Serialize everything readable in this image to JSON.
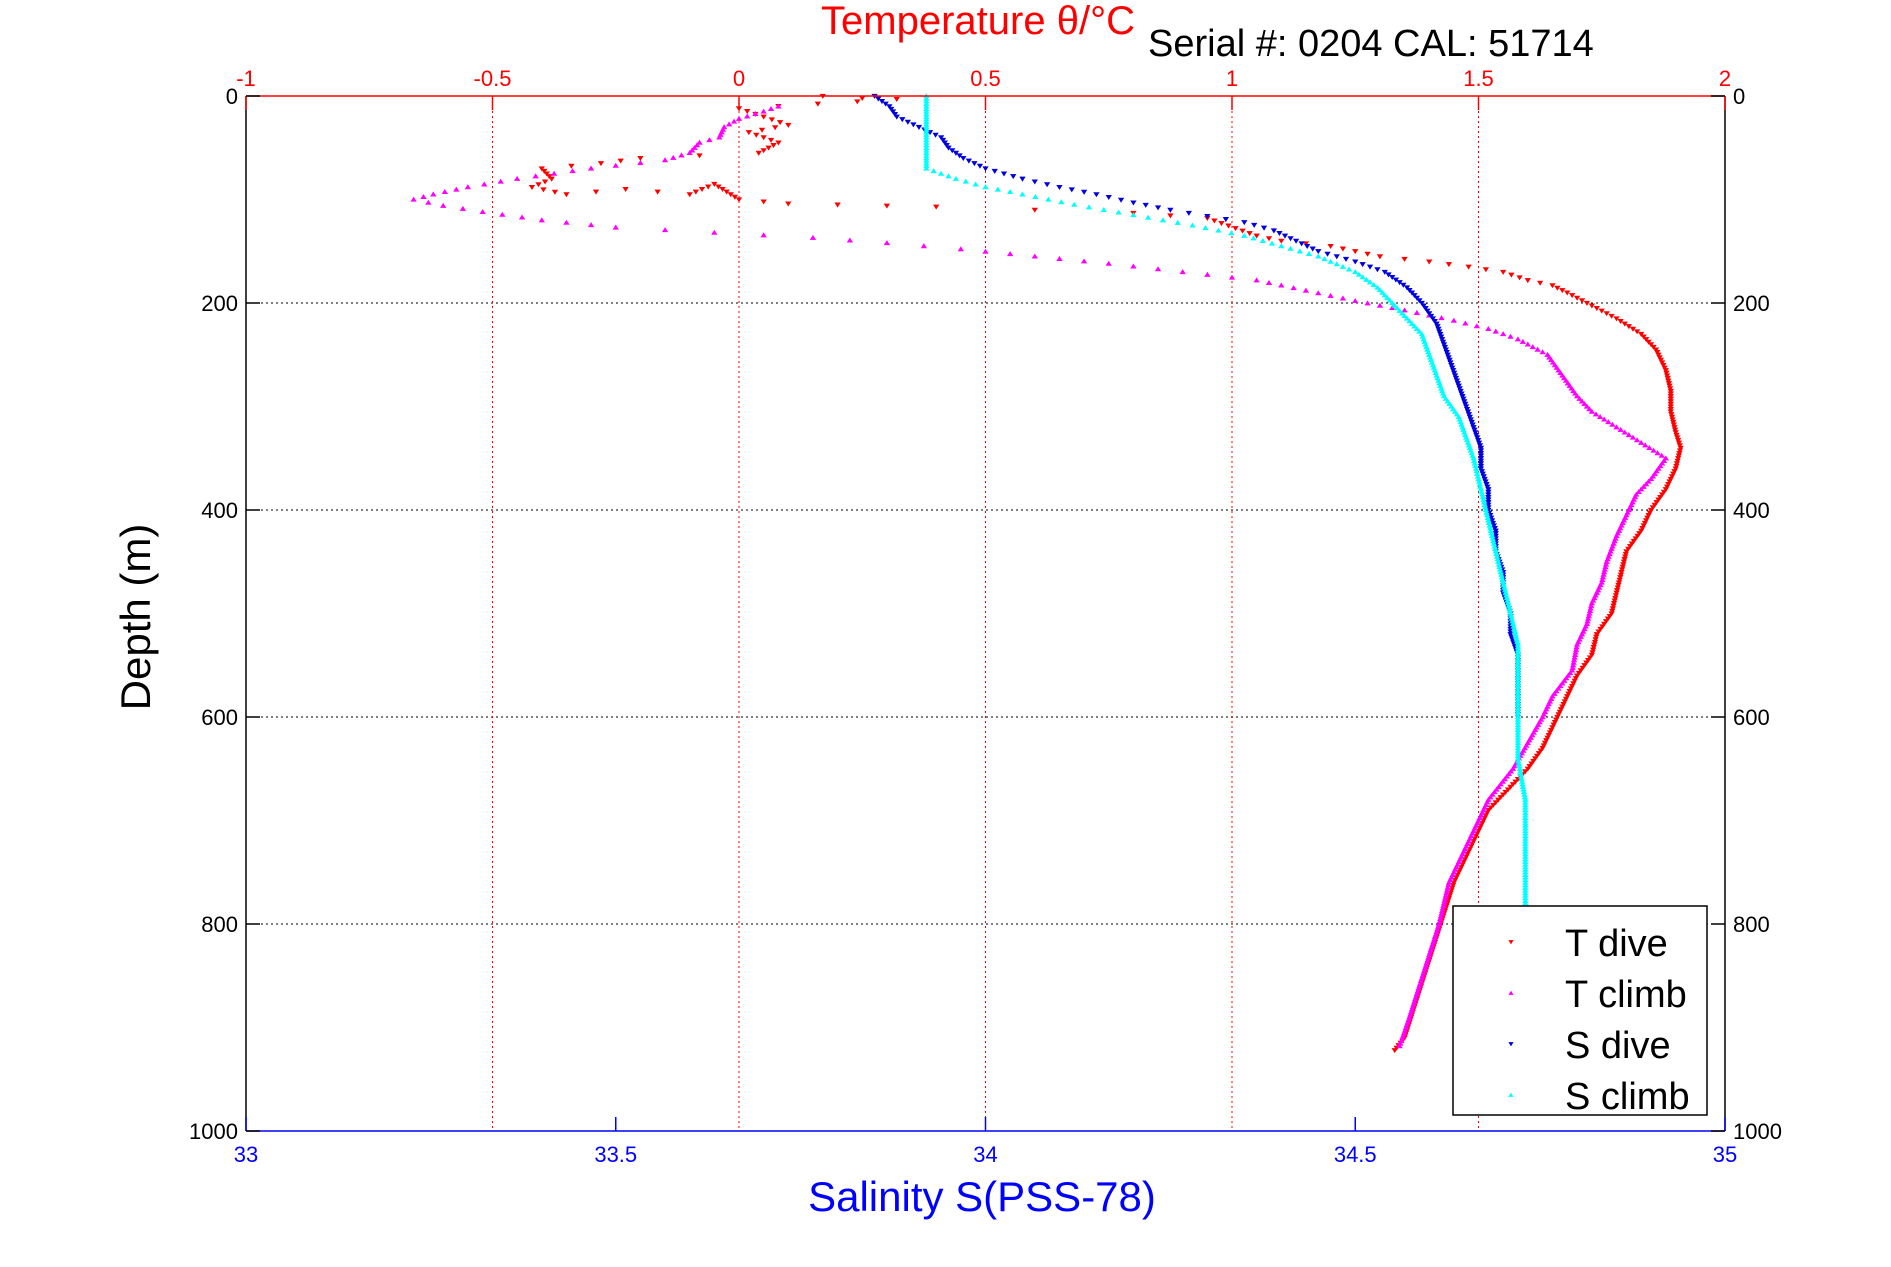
{
  "chart_data": {
    "type": "scatter",
    "title": "Temperature θ/°C",
    "subtitle": "Serial #: 0204  CAL: 51714",
    "xlabel": "Salinity S(PSS-78)",
    "ylabel": "Depth (m)",
    "x_bottom": {
      "label": "Salinity S(PSS-78)",
      "range": [
        33,
        35
      ],
      "ticks": [
        "33",
        "33.5",
        "34",
        "34.5",
        "35"
      ],
      "color": "#0000ff"
    },
    "x_top": {
      "label": "Temperature θ/°C",
      "range": [
        -1,
        2
      ],
      "ticks": [
        "-1",
        "-0.5",
        "0",
        "0.5",
        "1",
        "1.5",
        "2"
      ],
      "color": "#ff0000"
    },
    "y": {
      "label": "Depth (m)",
      "range": [
        0,
        1000
      ],
      "reversed": true,
      "ticks": [
        "0",
        "200",
        "400",
        "600",
        "800",
        "1000"
      ],
      "right_ticks": [
        "0",
        "200",
        "400",
        "600",
        "800",
        "1000"
      ]
    },
    "grid": true,
    "legend_position": "bottom-right",
    "series": [
      {
        "name": "T dive",
        "axis": "temperature",
        "color": "#ff0000",
        "marker": "triangle-down",
        "points": [
          [
            0.17,
            0
          ],
          [
            0.25,
            2
          ],
          [
            0.32,
            3
          ],
          [
            0.0,
            12
          ],
          [
            0.05,
            20
          ],
          [
            0.1,
            28
          ],
          [
            0.02,
            35
          ],
          [
            0.08,
            45
          ],
          [
            0.04,
            55
          ],
          [
            -0.2,
            60
          ],
          [
            -0.28,
            65
          ],
          [
            -0.4,
            70
          ],
          [
            -0.38,
            80
          ],
          [
            -0.42,
            88
          ],
          [
            -0.35,
            95
          ],
          [
            -0.23,
            90
          ],
          [
            -0.1,
            95
          ],
          [
            -0.05,
            85
          ],
          [
            0.0,
            100
          ],
          [
            0.05,
            102
          ],
          [
            0.1,
            104
          ],
          [
            0.2,
            105
          ],
          [
            0.3,
            106
          ],
          [
            0.4,
            107
          ],
          [
            0.6,
            110
          ],
          [
            0.8,
            113
          ],
          [
            0.95,
            118
          ],
          [
            1.05,
            135
          ],
          [
            1.1,
            140
          ],
          [
            1.2,
            145
          ],
          [
            1.3,
            155
          ],
          [
            1.4,
            160
          ],
          [
            1.48,
            165
          ],
          [
            1.55,
            170
          ],
          [
            1.6,
            178
          ],
          [
            1.65,
            183
          ],
          [
            1.68,
            190
          ],
          [
            1.72,
            200
          ],
          [
            1.78,
            215
          ],
          [
            1.83,
            230
          ],
          [
            1.86,
            245
          ],
          [
            1.88,
            265
          ],
          [
            1.89,
            285
          ],
          [
            1.89,
            305
          ],
          [
            1.9,
            325
          ],
          [
            1.91,
            340
          ],
          [
            1.9,
            360
          ],
          [
            1.88,
            380
          ],
          [
            1.85,
            400
          ],
          [
            1.83,
            420
          ],
          [
            1.8,
            440
          ],
          [
            1.79,
            460
          ],
          [
            1.78,
            480
          ],
          [
            1.77,
            500
          ],
          [
            1.74,
            520
          ],
          [
            1.73,
            540
          ],
          [
            1.7,
            560
          ],
          [
            1.68,
            580
          ],
          [
            1.66,
            600
          ],
          [
            1.63,
            630
          ],
          [
            1.6,
            650
          ],
          [
            1.56,
            670
          ],
          [
            1.52,
            690
          ],
          [
            1.5,
            710
          ],
          [
            1.48,
            730
          ],
          [
            1.45,
            760
          ],
          [
            1.43,
            790
          ],
          [
            1.41,
            820
          ],
          [
            1.39,
            850
          ],
          [
            1.37,
            880
          ],
          [
            1.35,
            910
          ],
          [
            1.33,
            922
          ]
        ]
      },
      {
        "name": "T climb",
        "axis": "temperature",
        "color": "#ff00ff",
        "marker": "triangle-up",
        "points": [
          [
            0.08,
            10
          ],
          [
            0.05,
            15
          ],
          [
            0.0,
            22
          ],
          [
            -0.03,
            30
          ],
          [
            -0.04,
            40
          ],
          [
            -0.08,
            45
          ],
          [
            -0.1,
            55
          ],
          [
            -0.15,
            62
          ],
          [
            -0.3,
            70
          ],
          [
            -0.45,
            80
          ],
          [
            -0.55,
            88
          ],
          [
            -0.62,
            95
          ],
          [
            -0.66,
            100
          ],
          [
            -0.6,
            106
          ],
          [
            -0.52,
            112
          ],
          [
            -0.4,
            120
          ],
          [
            -0.25,
            127
          ],
          [
            -0.05,
            132
          ],
          [
            0.15,
            137
          ],
          [
            0.3,
            142
          ],
          [
            0.45,
            148
          ],
          [
            0.6,
            155
          ],
          [
            0.75,
            162
          ],
          [
            0.9,
            170
          ],
          [
            1.05,
            178
          ],
          [
            1.15,
            188
          ],
          [
            1.25,
            198
          ],
          [
            1.35,
            207
          ],
          [
            1.45,
            217
          ],
          [
            1.52,
            225
          ],
          [
            1.58,
            235
          ],
          [
            1.64,
            250
          ],
          [
            1.67,
            270
          ],
          [
            1.7,
            290
          ],
          [
            1.73,
            305
          ],
          [
            1.78,
            320
          ],
          [
            1.83,
            335
          ],
          [
            1.88,
            350
          ],
          [
            1.85,
            370
          ],
          [
            1.82,
            385
          ],
          [
            1.8,
            405
          ],
          [
            1.78,
            425
          ],
          [
            1.76,
            450
          ],
          [
            1.75,
            470
          ],
          [
            1.73,
            490
          ],
          [
            1.72,
            510
          ],
          [
            1.7,
            530
          ],
          [
            1.69,
            555
          ],
          [
            1.65,
            580
          ],
          [
            1.63,
            600
          ],
          [
            1.6,
            625
          ],
          [
            1.57,
            650
          ],
          [
            1.52,
            680
          ],
          [
            1.48,
            720
          ],
          [
            1.44,
            760
          ],
          [
            1.42,
            800
          ],
          [
            1.4,
            830
          ],
          [
            1.38,
            860
          ],
          [
            1.36,
            890
          ],
          [
            1.34,
            918
          ]
        ]
      },
      {
        "name": "S dive",
        "axis": "salinity",
        "color": "#0000dd",
        "marker": "triangle-down",
        "points": [
          [
            33.85,
            0
          ],
          [
            33.87,
            10
          ],
          [
            33.88,
            20
          ],
          [
            33.91,
            30
          ],
          [
            33.94,
            40
          ],
          [
            33.95,
            50
          ],
          [
            33.97,
            60
          ],
          [
            34.0,
            70
          ],
          [
            34.05,
            80
          ],
          [
            34.1,
            88
          ],
          [
            34.15,
            95
          ],
          [
            34.2,
            103
          ],
          [
            34.25,
            110
          ],
          [
            34.3,
            116
          ],
          [
            34.35,
            122
          ],
          [
            34.39,
            130
          ],
          [
            34.42,
            140
          ],
          [
            34.45,
            150
          ],
          [
            34.5,
            160
          ],
          [
            34.54,
            170
          ],
          [
            34.57,
            185
          ],
          [
            34.59,
            200
          ],
          [
            34.61,
            220
          ],
          [
            34.62,
            240
          ],
          [
            34.63,
            260
          ],
          [
            34.64,
            280
          ],
          [
            34.65,
            300
          ],
          [
            34.66,
            320
          ],
          [
            34.67,
            340
          ],
          [
            34.67,
            360
          ],
          [
            34.68,
            380
          ],
          [
            34.68,
            400
          ],
          [
            34.69,
            420
          ],
          [
            34.69,
            440
          ],
          [
            34.7,
            460
          ],
          [
            34.7,
            480
          ],
          [
            34.71,
            500
          ],
          [
            34.71,
            520
          ],
          [
            34.72,
            540
          ],
          [
            34.72,
            560
          ],
          [
            34.72,
            580
          ],
          [
            34.72,
            600
          ]
        ]
      },
      {
        "name": "S climb",
        "axis": "salinity",
        "color": "#00ffff",
        "marker": "triangle-up",
        "points": [
          [
            33.92,
            0
          ],
          [
            33.92,
            10
          ],
          [
            33.92,
            20
          ],
          [
            33.92,
            30
          ],
          [
            33.92,
            40
          ],
          [
            33.92,
            50
          ],
          [
            33.92,
            60
          ],
          [
            33.92,
            70
          ],
          [
            33.96,
            80
          ],
          [
            34.0,
            88
          ],
          [
            34.05,
            95
          ],
          [
            34.12,
            105
          ],
          [
            34.2,
            115
          ],
          [
            34.28,
            125
          ],
          [
            34.35,
            135
          ],
          [
            34.4,
            145
          ],
          [
            34.45,
            155
          ],
          [
            34.5,
            170
          ],
          [
            34.53,
            185
          ],
          [
            34.55,
            200
          ],
          [
            34.57,
            215
          ],
          [
            34.59,
            230
          ],
          [
            34.6,
            250
          ],
          [
            34.61,
            270
          ],
          [
            34.62,
            290
          ],
          [
            34.64,
            310
          ],
          [
            34.65,
            330
          ],
          [
            34.66,
            350
          ],
          [
            34.67,
            380
          ],
          [
            34.68,
            410
          ],
          [
            34.69,
            440
          ],
          [
            34.7,
            470
          ],
          [
            34.71,
            500
          ],
          [
            34.72,
            530
          ],
          [
            34.72,
            560
          ],
          [
            34.72,
            600
          ],
          [
            34.72,
            640
          ],
          [
            34.73,
            680
          ],
          [
            34.73,
            720
          ],
          [
            34.73,
            760
          ],
          [
            34.73,
            790
          ],
          [
            34.73,
            800
          ]
        ]
      }
    ]
  }
}
